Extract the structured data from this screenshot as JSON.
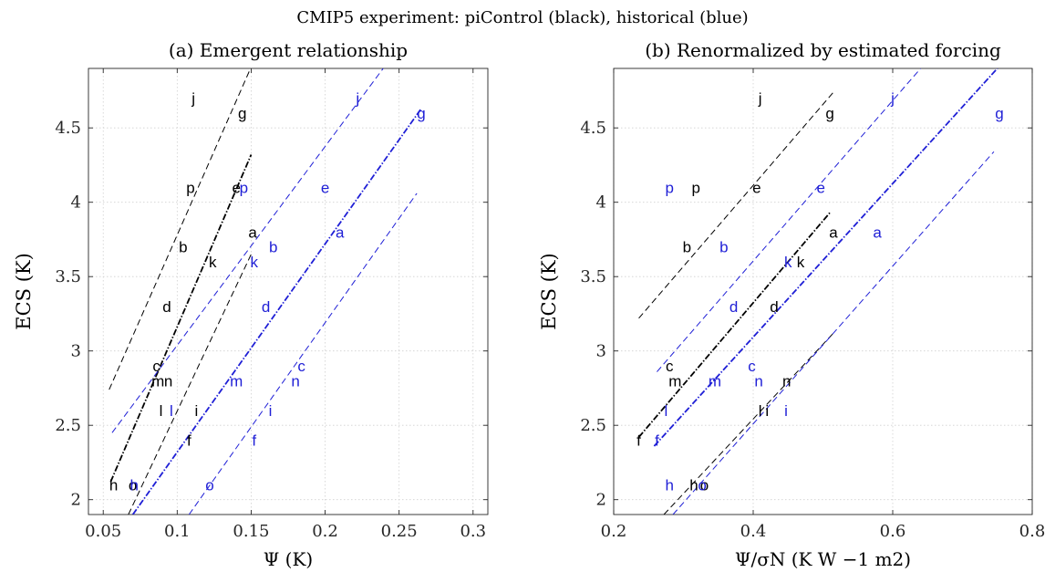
{
  "figure_title": "CMIP5 experiment: piControl (black), historical (blue)",
  "colors": {
    "piControl": "#000000",
    "historical": "#1f1fd6",
    "grid": "#d0d0d0",
    "axis": "#262626"
  },
  "chart_data": [
    {
      "type": "scatter",
      "title": "(a) Emergent relationship",
      "xlabel": "Ψ (K)",
      "ylabel": "ECS (K)",
      "xlim": [
        0.04,
        0.31
      ],
      "ylim": [
        1.9,
        4.9
      ],
      "xticks": [
        0.05,
        0.1,
        0.15,
        0.2,
        0.25,
        0.3
      ],
      "xtick_labels": [
        "0.05",
        "0.1",
        "0.15",
        "0.2",
        "0.25",
        "0.3"
      ],
      "yticks": [
        2,
        2.5,
        3,
        3.5,
        4,
        4.5
      ],
      "ytick_labels": [
        "2",
        "2.5",
        "3",
        "3.5",
        "4",
        "4.5"
      ],
      "grid": true,
      "series": [
        {
          "name": "piControl",
          "color": "#000000",
          "points": [
            {
              "label": "a",
              "x": 0.151,
              "y": 3.8
            },
            {
              "label": "b",
              "x": 0.104,
              "y": 3.7
            },
            {
              "label": "c",
              "x": 0.086,
              "y": 2.9
            },
            {
              "label": "d",
              "x": 0.093,
              "y": 3.3
            },
            {
              "label": "e",
              "x": 0.14,
              "y": 4.1
            },
            {
              "label": "f",
              "x": 0.108,
              "y": 2.4
            },
            {
              "label": "g",
              "x": 0.144,
              "y": 4.6
            },
            {
              "label": "h",
              "x": 0.057,
              "y": 2.1
            },
            {
              "label": "i",
              "x": 0.113,
              "y": 2.6
            },
            {
              "label": "j",
              "x": 0.111,
              "y": 4.7
            },
            {
              "label": "k",
              "x": 0.124,
              "y": 3.6
            },
            {
              "label": "l",
              "x": 0.089,
              "y": 2.6
            },
            {
              "label": "m",
              "x": 0.087,
              "y": 2.8
            },
            {
              "label": "n",
              "x": 0.094,
              "y": 2.8
            },
            {
              "label": "o",
              "x": 0.07,
              "y": 2.1
            },
            {
              "label": "p",
              "x": 0.109,
              "y": 4.1
            }
          ],
          "fit_line": [
            [
              0.055,
              2.12
            ],
            [
              0.15,
              4.32
            ]
          ],
          "bound_lines": [
            [
              [
                0.054,
                2.74
              ],
              [
                0.15,
                4.91
              ]
            ],
            [
              [
                0.067,
                1.9
              ],
              [
                0.15,
                3.65
              ]
            ]
          ]
        },
        {
          "name": "historical",
          "color": "#1f1fd6",
          "points": [
            {
              "label": "a",
              "x": 0.21,
              "y": 3.8
            },
            {
              "label": "b",
              "x": 0.165,
              "y": 3.7
            },
            {
              "label": "c",
              "x": 0.184,
              "y": 2.9
            },
            {
              "label": "d",
              "x": 0.16,
              "y": 3.3
            },
            {
              "label": "e",
              "x": 0.2,
              "y": 4.1
            },
            {
              "label": "f",
              "x": 0.152,
              "y": 2.4
            },
            {
              "label": "g",
              "x": 0.265,
              "y": 4.6
            },
            {
              "label": "h",
              "x": 0.071,
              "y": 2.1
            },
            {
              "label": "i",
              "x": 0.163,
              "y": 2.6
            },
            {
              "label": "j",
              "x": 0.222,
              "y": 4.7
            },
            {
              "label": "k",
              "x": 0.152,
              "y": 3.6
            },
            {
              "label": "l",
              "x": 0.096,
              "y": 2.6
            },
            {
              "label": "m",
              "x": 0.14,
              "y": 2.8
            },
            {
              "label": "n",
              "x": 0.18,
              "y": 2.8
            },
            {
              "label": "o",
              "x": 0.122,
              "y": 2.1
            },
            {
              "label": "p",
              "x": 0.145,
              "y": 4.1
            }
          ],
          "fit_line": [
            [
              0.07,
              1.9
            ],
            [
              0.265,
              4.63
            ]
          ],
          "bound_lines": [
            [
              [
                0.056,
                2.45
              ],
              [
                0.24,
                4.91
              ]
            ],
            [
              [
                0.108,
                1.9
              ],
              [
                0.262,
                4.06
              ]
            ]
          ]
        }
      ]
    },
    {
      "type": "scatter",
      "title": "(b) Renormalized by estimated forcing",
      "xlabel": "Ψ/σN (K W −1 m2)",
      "ylabel": "ECS (K)",
      "xlim": [
        0.2,
        0.8
      ],
      "ylim": [
        1.9,
        4.9
      ],
      "xticks": [
        0.2,
        0.4,
        0.6,
        0.8
      ],
      "xtick_labels": [
        "0.2",
        "0.4",
        "0.6",
        "0.8"
      ],
      "yticks": [
        2,
        2.5,
        3,
        3.5,
        4,
        4.5
      ],
      "ytick_labels": [
        "2",
        "2.5",
        "3",
        "3.5",
        "4",
        "4.5"
      ],
      "grid": true,
      "series": [
        {
          "name": "piControl",
          "color": "#000000",
          "points": [
            {
              "label": "a",
              "x": 0.515,
              "y": 3.8
            },
            {
              "label": "b",
              "x": 0.305,
              "y": 3.7
            },
            {
              "label": "c",
              "x": 0.28,
              "y": 2.9
            },
            {
              "label": "d",
              "x": 0.43,
              "y": 3.3
            },
            {
              "label": "e",
              "x": 0.405,
              "y": 4.1
            },
            {
              "label": "f",
              "x": 0.236,
              "y": 2.4
            },
            {
              "label": "g",
              "x": 0.51,
              "y": 4.6
            },
            {
              "label": "h",
              "x": 0.315,
              "y": 2.1
            },
            {
              "label": "i",
              "x": 0.42,
              "y": 2.6
            },
            {
              "label": "j",
              "x": 0.41,
              "y": 4.7
            },
            {
              "label": "k",
              "x": 0.468,
              "y": 3.6
            },
            {
              "label": "l",
              "x": 0.41,
              "y": 2.6
            },
            {
              "label": "m",
              "x": 0.288,
              "y": 2.8
            },
            {
              "label": "n",
              "x": 0.448,
              "y": 2.8
            },
            {
              "label": "o",
              "x": 0.33,
              "y": 2.1
            },
            {
              "label": "p",
              "x": 0.318,
              "y": 4.1
            }
          ],
          "fit_line": [
            [
              0.236,
              2.42
            ],
            [
              0.51,
              3.93
            ]
          ],
          "bound_lines": [
            [
              [
                0.236,
                3.22
              ],
              [
                0.515,
                4.74
              ]
            ],
            [
              [
                0.272,
                1.9
              ],
              [
                0.515,
                3.12
              ]
            ]
          ]
        },
        {
          "name": "historical",
          "color": "#1f1fd6",
          "points": [
            {
              "label": "a",
              "x": 0.578,
              "y": 3.8
            },
            {
              "label": "b",
              "x": 0.358,
              "y": 3.7
            },
            {
              "label": "c",
              "x": 0.398,
              "y": 2.9
            },
            {
              "label": "d",
              "x": 0.372,
              "y": 3.3
            },
            {
              "label": "e",
              "x": 0.497,
              "y": 4.1
            },
            {
              "label": "f",
              "x": 0.262,
              "y": 2.4
            },
            {
              "label": "g",
              "x": 0.753,
              "y": 4.6
            },
            {
              "label": "h",
              "x": 0.28,
              "y": 2.1
            },
            {
              "label": "i",
              "x": 0.447,
              "y": 2.6
            },
            {
              "label": "j",
              "x": 0.6,
              "y": 4.7
            },
            {
              "label": "k",
              "x": 0.45,
              "y": 3.6
            },
            {
              "label": "l",
              "x": 0.275,
              "y": 2.6
            },
            {
              "label": "m",
              "x": 0.345,
              "y": 2.8
            },
            {
              "label": "n",
              "x": 0.408,
              "y": 2.8
            },
            {
              "label": "o",
              "x": 0.327,
              "y": 2.1
            },
            {
              "label": "p",
              "x": 0.28,
              "y": 4.1
            }
          ],
          "fit_line": [
            [
              0.258,
              2.36
            ],
            [
              0.75,
              4.9
            ]
          ],
          "bound_lines": [
            [
              [
                0.262,
                2.86
              ],
              [
                0.64,
                4.9
              ]
            ],
            [
              [
                0.285,
                1.9
              ],
              [
                0.745,
                4.34
              ]
            ]
          ]
        }
      ]
    }
  ]
}
